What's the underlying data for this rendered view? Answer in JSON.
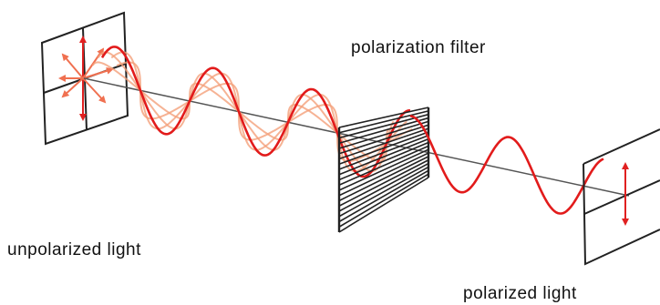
{
  "labels": {
    "filter": "polarization filter",
    "unpolarized": "unpolarized light",
    "polarized": "polarized light"
  }
}
